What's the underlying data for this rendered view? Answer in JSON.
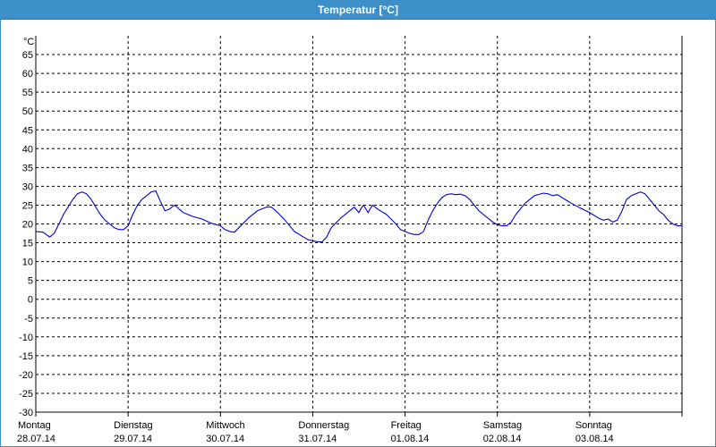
{
  "window": {
    "title": "Temperatur [°C]"
  },
  "chart_data": {
    "type": "line",
    "title": "Temperatur [°C]",
    "ylabel": "°C",
    "ylim": [
      -30,
      70
    ],
    "yticks": [
      65,
      60,
      55,
      50,
      45,
      40,
      35,
      30,
      25,
      20,
      15,
      10,
      5,
      0,
      -5,
      -10,
      -15,
      -20,
      -25,
      -30
    ],
    "xlim": [
      0,
      7
    ],
    "grid": true,
    "day_labels": [
      {
        "day": "Montag",
        "date": "28.07.14"
      },
      {
        "day": "Dienstag",
        "date": "29.07.14"
      },
      {
        "day": "Mittwoch",
        "date": "30.07.14"
      },
      {
        "day": "Donnerstag",
        "date": "31.07.14"
      },
      {
        "day": "Freitag",
        "date": "01.08.14"
      },
      {
        "day": "Samstag",
        "date": "02.08.14"
      },
      {
        "day": "Sonntag",
        "date": "03.08.14"
      }
    ],
    "series": [
      {
        "color": "#0000cc",
        "x": [
          0,
          0.08,
          0.15,
          0.2,
          0.25,
          0.3,
          0.35,
          0.4,
          0.45,
          0.5,
          0.55,
          0.6,
          0.65,
          0.7,
          0.75,
          0.8,
          0.85,
          0.9,
          0.95,
          1.0,
          1.05,
          1.1,
          1.15,
          1.2,
          1.25,
          1.3,
          1.35,
          1.4,
          1.45,
          1.5,
          1.53,
          1.55,
          1.6,
          1.7,
          1.8,
          1.9,
          2.0,
          2.05,
          2.1,
          2.15,
          2.2,
          2.3,
          2.4,
          2.5,
          2.55,
          2.6,
          2.7,
          2.8,
          2.9,
          2.95,
          3.0,
          3.05,
          3.1,
          3.15,
          3.2,
          3.3,
          3.4,
          3.45,
          3.5,
          3.52,
          3.55,
          3.6,
          3.62,
          3.65,
          3.7,
          3.8,
          3.9,
          3.95,
          4.0,
          4.05,
          4.1,
          4.15,
          4.2,
          4.25,
          4.3,
          4.35,
          4.4,
          4.45,
          4.5,
          4.55,
          4.6,
          4.65,
          4.7,
          4.75,
          4.8,
          4.85,
          4.9,
          4.95,
          5.0,
          5.05,
          5.1,
          5.15,
          5.2,
          5.3,
          5.4,
          5.5,
          5.55,
          5.6,
          5.65,
          5.7,
          5.8,
          5.9,
          6.0,
          6.1,
          6.15,
          6.2,
          6.25,
          6.3,
          6.35,
          6.4,
          6.45,
          6.5,
          6.55,
          6.6,
          6.65,
          6.7,
          6.75,
          6.8,
          6.85,
          6.9,
          6.95,
          7.0
        ],
        "y": [
          18,
          17.8,
          16.5,
          17.5,
          20,
          22.5,
          24.5,
          26.5,
          28,
          28.5,
          28,
          26.5,
          24.5,
          22.5,
          21,
          20,
          19,
          18.5,
          18.5,
          19.5,
          22.5,
          25,
          26.5,
          27.5,
          28.5,
          28.8,
          26,
          23.5,
          24,
          25,
          24.5,
          24,
          23,
          22,
          21.3,
          20.2,
          19.5,
          18.5,
          18,
          17.8,
          19,
          21.5,
          23.5,
          24.5,
          24.5,
          23.5,
          21,
          18,
          16.5,
          15.8,
          15.5,
          15.3,
          15.2,
          16.5,
          19,
          21.5,
          23.5,
          24.5,
          23,
          24,
          25,
          23,
          24,
          25,
          24,
          22.5,
          20,
          18.5,
          18,
          17.5,
          17.2,
          17.2,
          18,
          21,
          23.5,
          25.5,
          27,
          27.8,
          28,
          27.8,
          27.9,
          27.5,
          26.5,
          25,
          23.5,
          22.5,
          21.5,
          20.5,
          19.8,
          19.5,
          19.5,
          20.5,
          22.5,
          25.5,
          27.5,
          28.2,
          28,
          27.5,
          27.8,
          27,
          25.5,
          24.2,
          23,
          21.5,
          21,
          21.3,
          20.5,
          21,
          23.5,
          26.5,
          27.5,
          28,
          28.5,
          28,
          26.5,
          25,
          23.5,
          22.5,
          21,
          20,
          19.5,
          19.5
        ]
      }
    ]
  }
}
